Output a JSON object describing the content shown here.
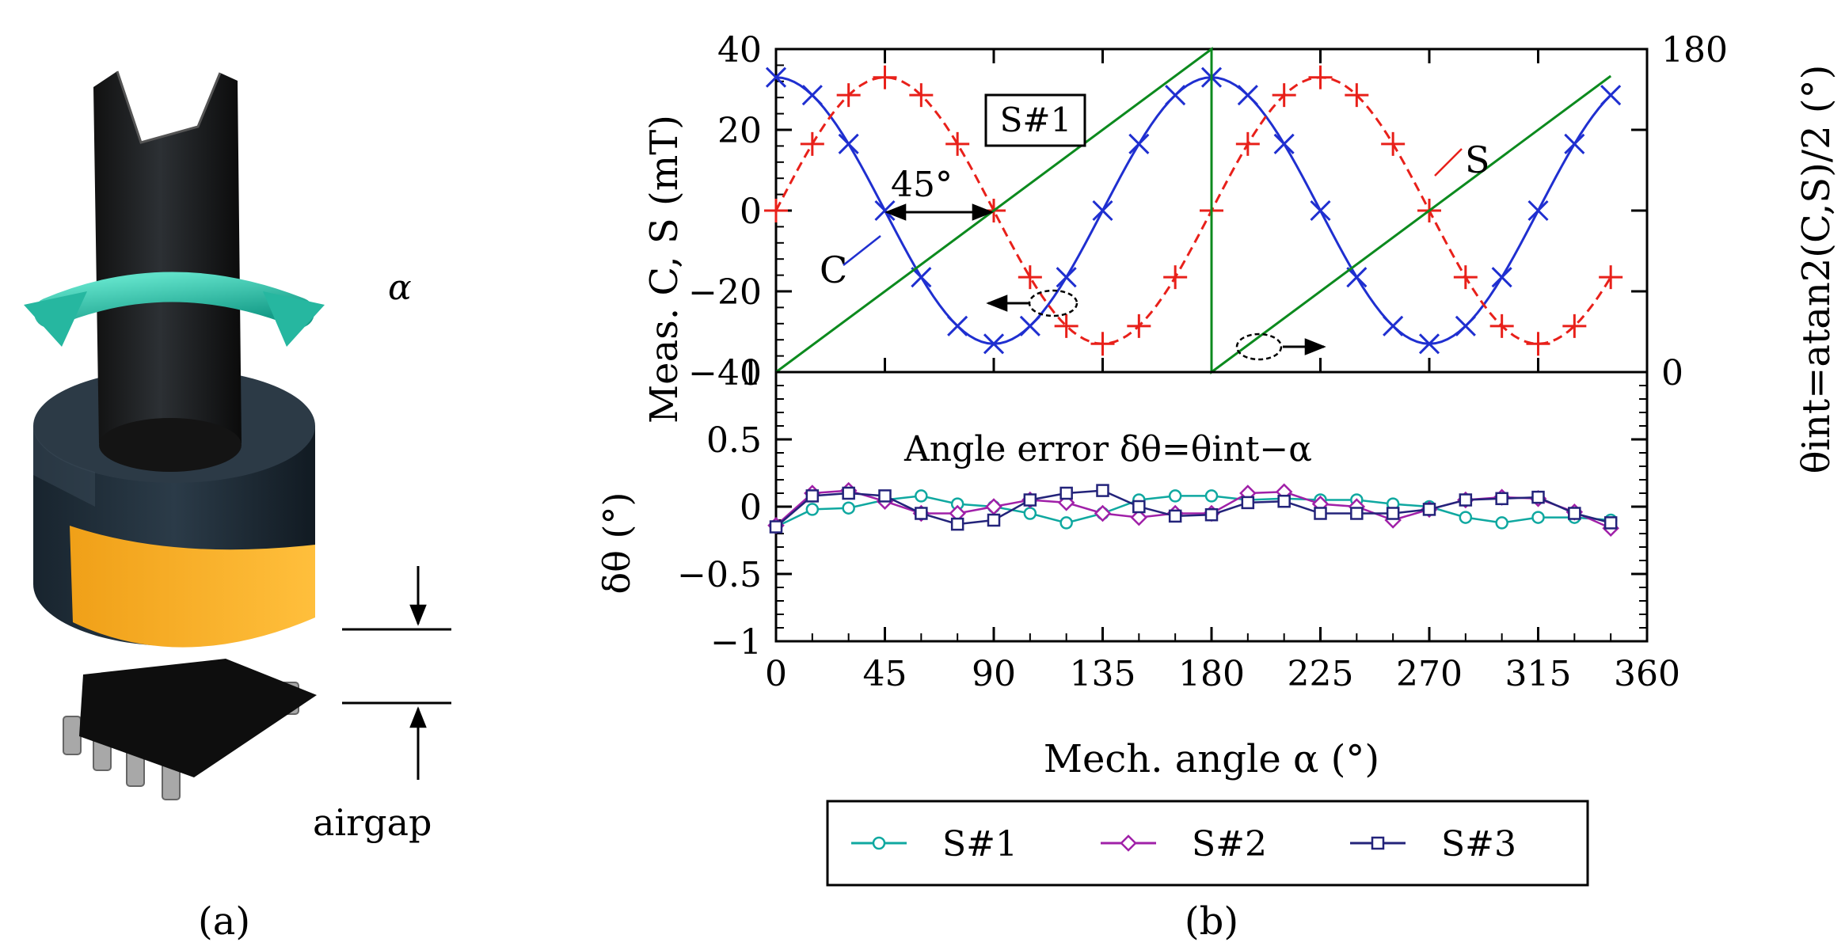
{
  "panel_a": {
    "caption": "(a)",
    "alpha_label": "α",
    "airgap_label": "airgap"
  },
  "panel_b": {
    "caption": "(b)"
  },
  "colors": {
    "C": "#1f2fd0",
    "S": "#e8201a",
    "theta": "#0c8a1e",
    "S1": "#0fa8a0",
    "S2": "#a020a8",
    "S3": "#23237a",
    "magnet_dark": "#24333f",
    "magnet_orange": "#f3a61c",
    "ring": "#2fc0a8"
  },
  "chart_data": [
    {
      "type": "line",
      "title": "",
      "xlabel": "",
      "ylabel": "Meas. C, S (mT)",
      "y2label": "θint=atan2(C,S)/2 (°)",
      "x": [
        0,
        15,
        30,
        45,
        60,
        75,
        90,
        105,
        120,
        135,
        150,
        165,
        180,
        195,
        210,
        225,
        240,
        255,
        270,
        285,
        300,
        315,
        330,
        345
      ],
      "xlim": [
        0,
        360
      ],
      "ylim": [
        -40,
        40
      ],
      "yticks": [
        "40",
        "20",
        "0",
        "−20",
        "−40"
      ],
      "y2lim": [
        0,
        180
      ],
      "y2ticks": [
        "180",
        "0"
      ],
      "series": [
        {
          "name": "C",
          "axis": "left",
          "style": "solid",
          "marker": "x",
          "values": [
            33,
            28.6,
            16.5,
            0,
            -16.5,
            -28.6,
            -33,
            -28.6,
            -16.5,
            0,
            16.5,
            28.6,
            33,
            28.6,
            16.5,
            0,
            -16.5,
            -28.6,
            -33,
            -28.6,
            -16.5,
            0,
            16.5,
            28.6
          ]
        },
        {
          "name": "S",
          "axis": "left",
          "style": "dashed",
          "marker": "+",
          "values": [
            0,
            16.5,
            28.6,
            33,
            28.6,
            16.5,
            0,
            -16.5,
            -28.6,
            -33,
            -28.6,
            -16.5,
            0,
            16.5,
            28.6,
            33,
            28.6,
            16.5,
            0,
            -16.5,
            -28.6,
            -33,
            -28.6,
            -16.5
          ]
        },
        {
          "name": "θint",
          "axis": "right",
          "style": "solid",
          "marker": "none",
          "x": [
            0,
            180,
            180,
            345
          ],
          "values": [
            0,
            180,
            0,
            165
          ]
        }
      ],
      "annotations": {
        "sensor_box": "S#1",
        "phase_label": "45°",
        "C_label": "C",
        "S_label": "S"
      }
    },
    {
      "type": "line",
      "title": "Angle error δθ=θint−α",
      "xlabel": "Mech. angle α (°)",
      "ylabel": "δθ (°)",
      "x": [
        0,
        15,
        30,
        45,
        60,
        75,
        90,
        105,
        120,
        135,
        150,
        165,
        180,
        195,
        210,
        225,
        240,
        255,
        270,
        285,
        300,
        315,
        330,
        345
      ],
      "xlim": [
        0,
        360
      ],
      "xticks": [
        "0",
        "45",
        "90",
        "135",
        "180",
        "225",
        "270",
        "315",
        "360"
      ],
      "ylim": [
        -1,
        1
      ],
      "yticks": [
        "1",
        "0.5",
        "0",
        "−0.5",
        "−1"
      ],
      "series": [
        {
          "name": "S#1",
          "marker": "circle",
          "values": [
            -0.15,
            -0.02,
            -0.01,
            0.05,
            0.08,
            0.02,
            0,
            -0.05,
            -0.12,
            -0.05,
            0.05,
            0.08,
            0.08,
            0.05,
            0.06,
            0.05,
            0.05,
            0.02,
            0,
            -0.08,
            -0.12,
            -0.08,
            -0.08,
            -0.1
          ]
        },
        {
          "name": "S#2",
          "marker": "diamond",
          "values": [
            -0.14,
            0.1,
            0.12,
            0.04,
            -0.05,
            -0.05,
            0,
            0.05,
            0.03,
            -0.05,
            -0.08,
            -0.05,
            -0.05,
            0.1,
            0.11,
            0.02,
            0,
            -0.1,
            -0.02,
            0.05,
            0.07,
            0.06,
            -0.04,
            -0.16
          ]
        },
        {
          "name": "S#3",
          "marker": "square",
          "values": [
            -0.15,
            0.08,
            0.1,
            0.08,
            -0.05,
            -0.13,
            -0.1,
            0.05,
            0.1,
            0.12,
            0,
            -0.07,
            -0.06,
            0.03,
            0.04,
            -0.05,
            -0.05,
            -0.05,
            -0.02,
            0.05,
            0.06,
            0.07,
            -0.05,
            -0.12
          ]
        }
      ],
      "legend": {
        "position": "bottom",
        "entries": [
          "S#1",
          "S#2",
          "S#3"
        ]
      }
    }
  ]
}
